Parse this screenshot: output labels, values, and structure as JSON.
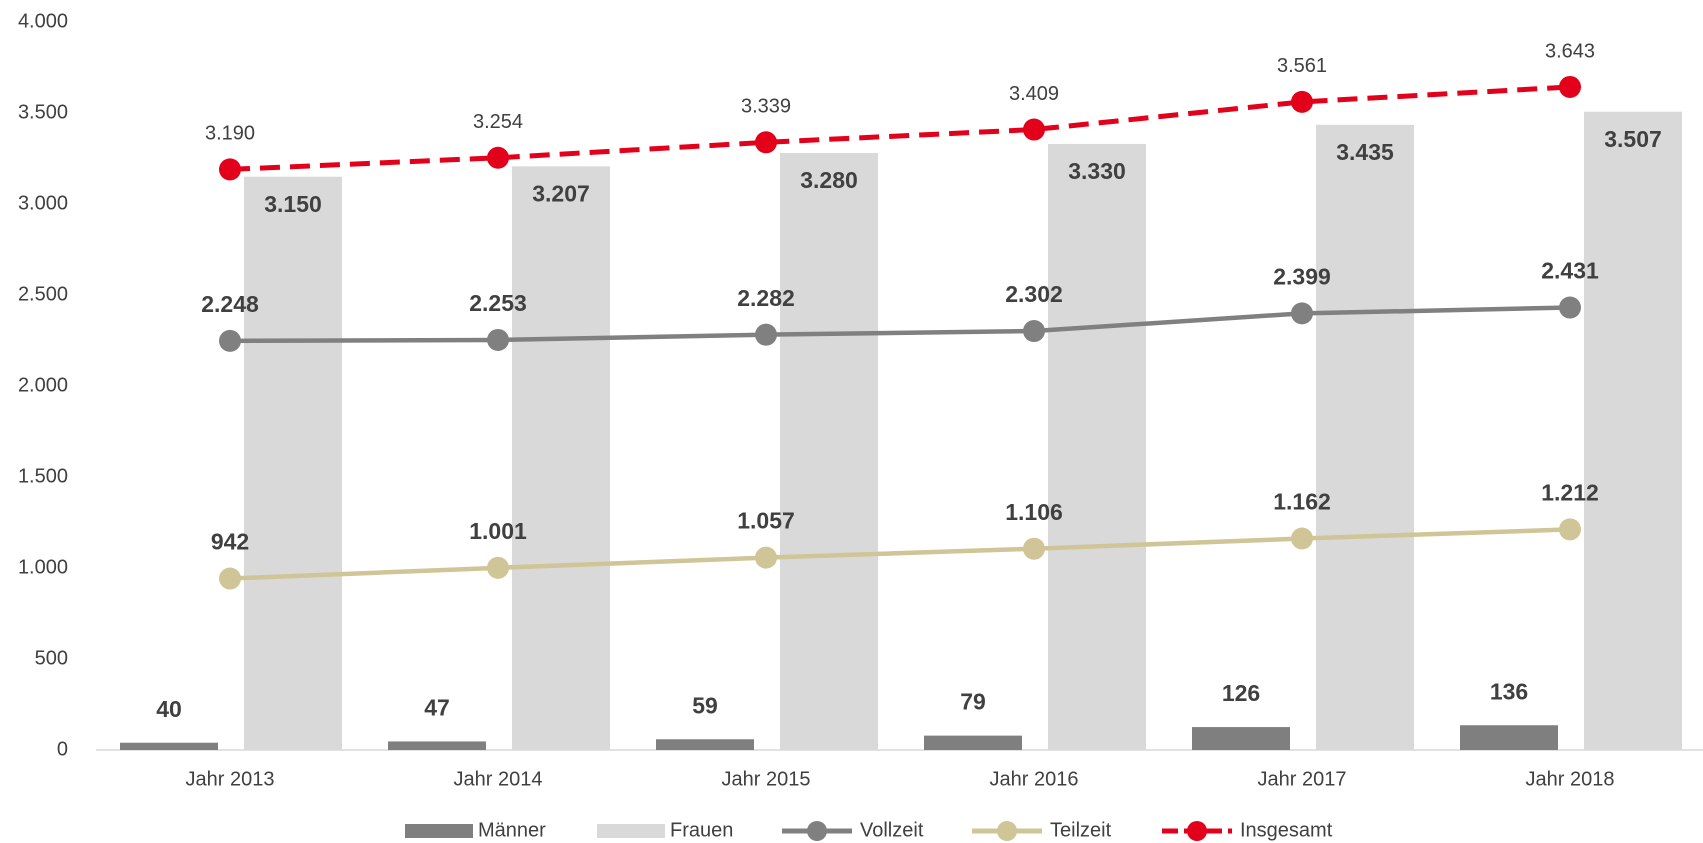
{
  "chart_data": {
    "type": "combo",
    "categories": [
      "Jahr 2013",
      "Jahr 2014",
      "Jahr 2015",
      "Jahr 2016",
      "Jahr 2017",
      "Jahr 2018"
    ],
    "ylim": [
      0,
      4000
    ],
    "yticks": [
      0,
      {
        "value": 500,
        "label": "500"
      },
      {
        "value": 1000,
        "label": "1.000"
      },
      {
        "value": 1500,
        "label": "1.500"
      },
      {
        "value": 2000,
        "label": "2.000"
      },
      {
        "value": 2500,
        "label": "2.500"
      },
      {
        "value": 3000,
        "label": "3.000"
      },
      {
        "value": 3500,
        "label": "3.500"
      },
      {
        "value": 4000,
        "label": "4.000"
      }
    ],
    "grid": false,
    "legend": "bottom",
    "series": [
      {
        "name": "Männer",
        "type": "bar",
        "color": "#7f7f7f",
        "values": [
          40,
          47,
          59,
          79,
          126,
          136
        ]
      },
      {
        "name": "Frauen",
        "type": "bar",
        "color": "#d9d9d9",
        "values": [
          3150,
          3207,
          3280,
          3330,
          3435,
          3507
        ],
        "value_labels": [
          "3.150",
          "3.207",
          "3.280",
          "3.330",
          "3.435",
          "3.507"
        ]
      },
      {
        "name": "Vollzeit",
        "type": "line",
        "color": "#808080",
        "values": [
          2248,
          2253,
          2282,
          2302,
          2399,
          2431
        ],
        "value_labels": [
          "2.248",
          "2.253",
          "2.282",
          "2.302",
          "2.399",
          "2.431"
        ]
      },
      {
        "name": "Teilzeit",
        "type": "line",
        "color": "#cfc597",
        "values": [
          942,
          1001,
          1057,
          1106,
          1162,
          1212
        ],
        "value_labels": [
          "942",
          "1.001",
          "1.057",
          "1.106",
          "1.162",
          "1.212"
        ]
      },
      {
        "name": "Insgesamt",
        "type": "line",
        "line_style": "dashed",
        "color": "#e2001a",
        "values": [
          3190,
          3254,
          3339,
          3409,
          3561,
          3643
        ],
        "value_labels": [
          "3.190",
          "3.254",
          "3.339",
          "3.409",
          "3.561",
          "3.643"
        ]
      }
    ]
  }
}
